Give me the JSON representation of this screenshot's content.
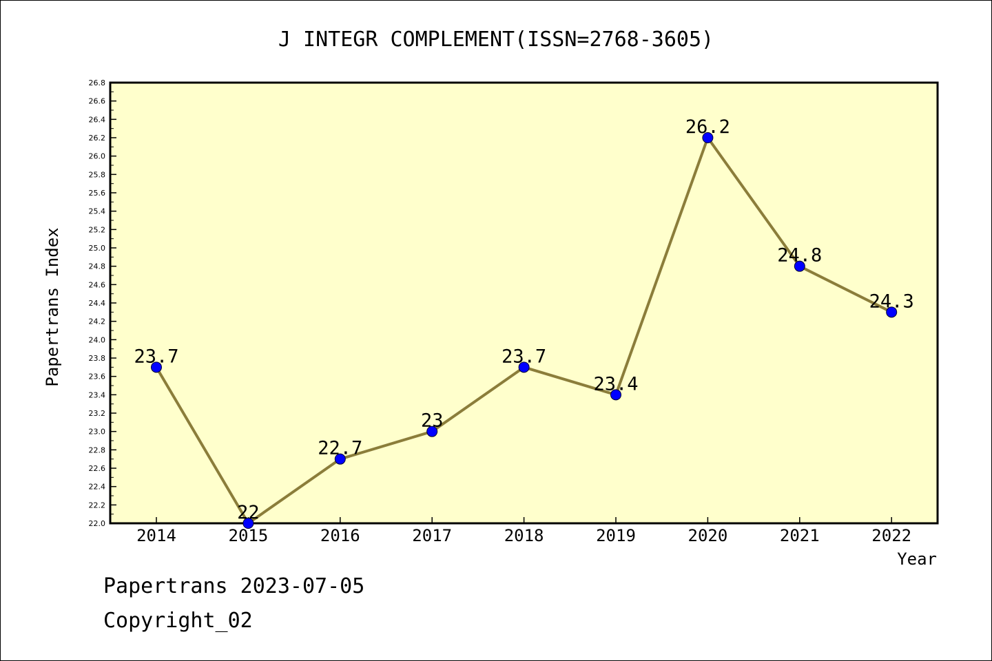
{
  "chart_data": {
    "type": "line",
    "title": "J INTEGR COMPLEMENT(ISSN=2768-3605)",
    "xlabel": "Year",
    "ylabel": "Papertrans Index",
    "categories": [
      "2014",
      "2015",
      "2016",
      "2017",
      "2018",
      "2019",
      "2020",
      "2021",
      "2022"
    ],
    "values": [
      23.7,
      22,
      22.7,
      23,
      23.7,
      23.4,
      26.2,
      24.8,
      24.3
    ],
    "value_labels": [
      "23.7",
      "22",
      "22.7",
      "23",
      "23.7",
      "23.4",
      "26.2",
      "24.8",
      "24.3"
    ],
    "ylim": [
      22.0,
      26.8
    ],
    "y_tick_labels": [
      "22.0",
      "22.2",
      "22.4",
      "22.6",
      "22.8",
      "23.0",
      "23.2",
      "23.4",
      "23.6",
      "23.8",
      "24.0",
      "24.2",
      "24.4",
      "24.6",
      "24.8",
      "25.0",
      "25.2",
      "25.4",
      "25.6",
      "25.8",
      "26.0",
      "26.2",
      "26.4",
      "26.6",
      "26.8"
    ],
    "grid": false,
    "colors": {
      "plot_background": "#ffffcc",
      "line": "#8b7d3a",
      "marker": "#0000ff",
      "axis": "#000000"
    }
  },
  "footer": {
    "line1": "Papertrans 2023-07-05",
    "line2": "Copyright_02"
  }
}
